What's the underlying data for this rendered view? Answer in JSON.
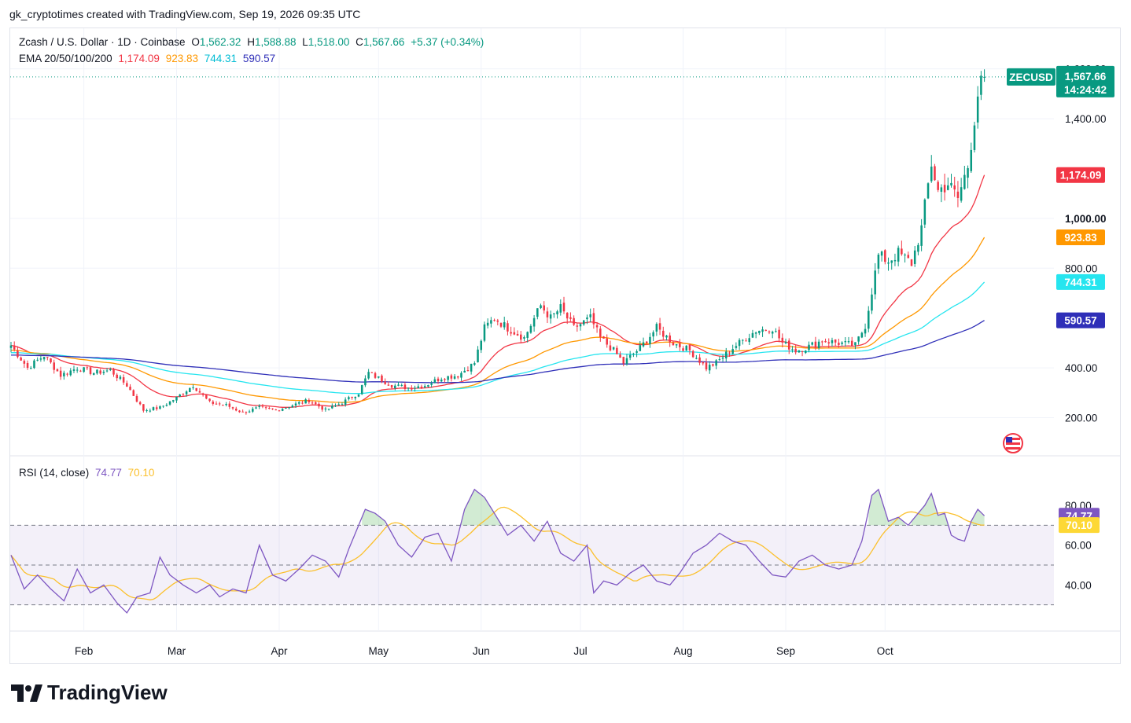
{
  "attribution": "gk_cryptotimes created with TradingView.com, Sep 19, 2026 09:35 UTC",
  "legend": {
    "symbol": "Zcash / U.S. Dollar · 1D · Coinbase",
    "open_label": "O",
    "open": "1,562.32",
    "high_label": "H",
    "high": "1,588.88",
    "low_label": "L",
    "low": "1,518.00",
    "close_label": "C",
    "close": "1,567.66",
    "change": "+5.37 (+0.34%)"
  },
  "ema_legend": {
    "title": "EMA 20/50/100/200",
    "values": [
      "1,174.09",
      "923.83",
      "744.31",
      "590.57"
    ]
  },
  "rsi_legend": {
    "title": "RSI (14, close)",
    "values": [
      "74.77",
      "70.10"
    ]
  },
  "brand": "TradingView",
  "colors": {
    "up": "#089981",
    "down": "#f23645",
    "ema20": "#f23645",
    "ema50": "#ff9800",
    "ema100": "#26e5ef",
    "ema200": "#2f2fb8",
    "rsi": "#7e57c2",
    "rsi_ma": "#fbc02d"
  },
  "chart_data": [
    {
      "type": "candlestick",
      "title": "Zcash / U.S. Dollar · 1D · Coinbase",
      "x_tick_labels": [
        "Feb",
        "Mar",
        "Apr",
        "May",
        "Jun",
        "Jul",
        "Aug",
        "Sep",
        "Oct"
      ],
      "y_tick_labels": [
        "200.00",
        "400.00",
        "800.00",
        "1,000.00",
        "1,400.00",
        "1,600.00"
      ],
      "y_ticks": [
        200,
        400,
        800,
        1000,
        1400,
        1600
      ],
      "ylim": [
        110,
        1640
      ],
      "price_tag": {
        "label": "ZECUSD",
        "value": "1,567.66",
        "countdown": "14:24:42"
      },
      "ema_tags": [
        {
          "name": "EMA 20",
          "value": "1,174.09"
        },
        {
          "name": "EMA 50",
          "value": "923.83"
        },
        {
          "name": "EMA 100",
          "value": "744.31"
        },
        {
          "name": "EMA 200",
          "value": "590.57"
        }
      ],
      "close_anchors": [
        [
          0,
          490
        ],
        [
          5,
          400
        ],
        [
          10,
          450
        ],
        [
          15,
          370
        ],
        [
          20,
          400
        ],
        [
          25,
          380
        ],
        [
          30,
          390
        ],
        [
          35,
          330
        ],
        [
          40,
          230
        ],
        [
          45,
          240
        ],
        [
          50,
          280
        ],
        [
          55,
          330
        ],
        [
          60,
          260
        ],
        [
          65,
          250
        ],
        [
          70,
          220
        ],
        [
          75,
          240
        ],
        [
          80,
          230
        ],
        [
          85,
          250
        ],
        [
          90,
          270
        ],
        [
          95,
          230
        ],
        [
          100,
          260
        ],
        [
          105,
          300
        ],
        [
          108,
          380
        ],
        [
          115,
          330
        ],
        [
          120,
          320
        ],
        [
          125,
          330
        ],
        [
          130,
          360
        ],
        [
          135,
          370
        ],
        [
          140,
          420
        ],
        [
          143,
          560
        ],
        [
          146,
          600
        ],
        [
          150,
          560
        ],
        [
          155,
          520
        ],
        [
          160,
          650
        ],
        [
          163,
          600
        ],
        [
          166,
          640
        ],
        [
          170,
          560
        ],
        [
          175,
          600
        ],
        [
          178,
          520
        ],
        [
          182,
          470
        ],
        [
          185,
          420
        ],
        [
          190,
          480
        ],
        [
          195,
          560
        ],
        [
          200,
          500
        ],
        [
          205,
          470
        ],
        [
          210,
          400
        ],
        [
          213,
          420
        ],
        [
          218,
          480
        ],
        [
          222,
          520
        ],
        [
          225,
          550
        ],
        [
          230,
          560
        ],
        [
          233,
          500
        ],
        [
          237,
          470
        ],
        [
          240,
          480
        ],
        [
          245,
          510
        ],
        [
          250,
          500
        ],
        [
          255,
          490
        ],
        [
          258,
          570
        ],
        [
          262,
          850
        ],
        [
          265,
          830
        ],
        [
          268,
          860
        ],
        [
          272,
          820
        ],
        [
          275,
          960
        ],
        [
          278,
          1220
        ],
        [
          280,
          1110
        ],
        [
          283,
          1140
        ],
        [
          286,
          1080
        ],
        [
          289,
          1210
        ],
        [
          292,
          1500
        ],
        [
          294,
          1567.66
        ]
      ],
      "ema_current": [
        1174.09,
        923.83,
        744.31,
        590.57
      ]
    },
    {
      "type": "line",
      "title": "RSI (14, close)",
      "y_tick_labels": [
        "40.00",
        "60.00",
        "80.00"
      ],
      "y_ticks": [
        40,
        60,
        80
      ],
      "ylim": [
        20,
        97
      ],
      "band": [
        30,
        70
      ],
      "mid": 50,
      "rsi_tag": "74.77",
      "rsi_ma_tag": "70.10",
      "rsi_anchors": [
        [
          0,
          55
        ],
        [
          4,
          38
        ],
        [
          8,
          45
        ],
        [
          12,
          38
        ],
        [
          16,
          32
        ],
        [
          20,
          48
        ],
        [
          24,
          36
        ],
        [
          28,
          40
        ],
        [
          32,
          31
        ],
        [
          35,
          26
        ],
        [
          38,
          34
        ],
        [
          42,
          36
        ],
        [
          45,
          54
        ],
        [
          48,
          45
        ],
        [
          52,
          40
        ],
        [
          56,
          36
        ],
        [
          60,
          40
        ],
        [
          63,
          34
        ],
        [
          67,
          38
        ],
        [
          71,
          36
        ],
        [
          75,
          60
        ],
        [
          79,
          45
        ],
        [
          83,
          42
        ],
        [
          87,
          48
        ],
        [
          91,
          55
        ],
        [
          95,
          52
        ],
        [
          99,
          44
        ],
        [
          102,
          58
        ],
        [
          105,
          70
        ],
        [
          107,
          78
        ],
        [
          110,
          76
        ],
        [
          113,
          72
        ],
        [
          117,
          60
        ],
        [
          121,
          54
        ],
        [
          125,
          64
        ],
        [
          129,
          66
        ],
        [
          133,
          52
        ],
        [
          137,
          78
        ],
        [
          140,
          88
        ],
        [
          143,
          84
        ],
        [
          146,
          76
        ],
        [
          150,
          65
        ],
        [
          154,
          70
        ],
        [
          158,
          62
        ],
        [
          162,
          72
        ],
        [
          166,
          56
        ],
        [
          170,
          52
        ],
        [
          174,
          60
        ],
        [
          176,
          36
        ],
        [
          179,
          42
        ],
        [
          183,
          40
        ],
        [
          187,
          46
        ],
        [
          191,
          50
        ],
        [
          195,
          42
        ],
        [
          199,
          40
        ],
        [
          202,
          46
        ],
        [
          206,
          56
        ],
        [
          210,
          60
        ],
        [
          214,
          66
        ],
        [
          218,
          62
        ],
        [
          222,
          60
        ],
        [
          226,
          52
        ],
        [
          230,
          45
        ],
        [
          234,
          44
        ],
        [
          238,
          52
        ],
        [
          242,
          55
        ],
        [
          246,
          50
        ],
        [
          250,
          48
        ],
        [
          254,
          50
        ],
        [
          257,
          62
        ],
        [
          260,
          85
        ],
        [
          262,
          88
        ],
        [
          265,
          72
        ],
        [
          268,
          74
        ],
        [
          271,
          70
        ],
        [
          273,
          74
        ],
        [
          276,
          80
        ],
        [
          278,
          86
        ],
        [
          280,
          75
        ],
        [
          282,
          76
        ],
        [
          284,
          65
        ],
        [
          286,
          63
        ],
        [
          288,
          62
        ],
        [
          290,
          72
        ],
        [
          292,
          78
        ],
        [
          294,
          74.77
        ]
      ],
      "rsi_ma_current": 70.1
    }
  ]
}
